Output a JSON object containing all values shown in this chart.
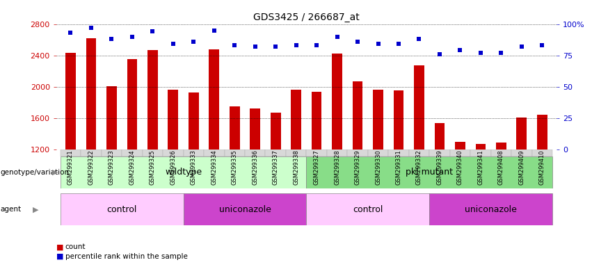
{
  "title": "GDS3425 / 266687_at",
  "samples": [
    "GSM299321",
    "GSM299322",
    "GSM299323",
    "GSM299324",
    "GSM299325",
    "GSM299326",
    "GSM299333",
    "GSM299334",
    "GSM299335",
    "GSM299336",
    "GSM299337",
    "GSM299338",
    "GSM299327",
    "GSM299328",
    "GSM299329",
    "GSM299330",
    "GSM299331",
    "GSM299332",
    "GSM299339",
    "GSM299340",
    "GSM299341",
    "GSM299408",
    "GSM299409",
    "GSM299410"
  ],
  "counts": [
    2430,
    2620,
    2010,
    2350,
    2470,
    1960,
    1930,
    2480,
    1750,
    1720,
    1670,
    1960,
    1940,
    2420,
    2070,
    1960,
    1950,
    2270,
    1540,
    1300,
    1270,
    1290,
    1610,
    1640
  ],
  "percentile_ranks": [
    93,
    97,
    88,
    90,
    94,
    84,
    86,
    95,
    83,
    82,
    82,
    83,
    83,
    90,
    86,
    84,
    84,
    88,
    76,
    79,
    77,
    77,
    82,
    83
  ],
  "ylim_left": [
    1200,
    2800
  ],
  "ylim_right": [
    0,
    100
  ],
  "yticks_left": [
    1200,
    1600,
    2000,
    2400,
    2800
  ],
  "yticks_right": [
    0,
    25,
    50,
    75,
    100
  ],
  "bar_color": "#cc0000",
  "dot_color": "#0000cc",
  "background_color": "#ffffff",
  "xtick_bg": "#d8d8d8",
  "genotype_groups": [
    {
      "label": "wildtype",
      "start": 0,
      "end": 12,
      "color": "#ccffcc"
    },
    {
      "label": "pkl mutant",
      "start": 12,
      "end": 24,
      "color": "#88dd88"
    }
  ],
  "agent_groups": [
    {
      "label": "control",
      "start": 0,
      "end": 6,
      "color": "#ffccff"
    },
    {
      "label": "uniconazole",
      "start": 6,
      "end": 12,
      "color": "#cc44cc"
    },
    {
      "label": "control",
      "start": 12,
      "end": 18,
      "color": "#ffccff"
    },
    {
      "label": "uniconazole",
      "start": 18,
      "end": 24,
      "color": "#cc44cc"
    }
  ]
}
